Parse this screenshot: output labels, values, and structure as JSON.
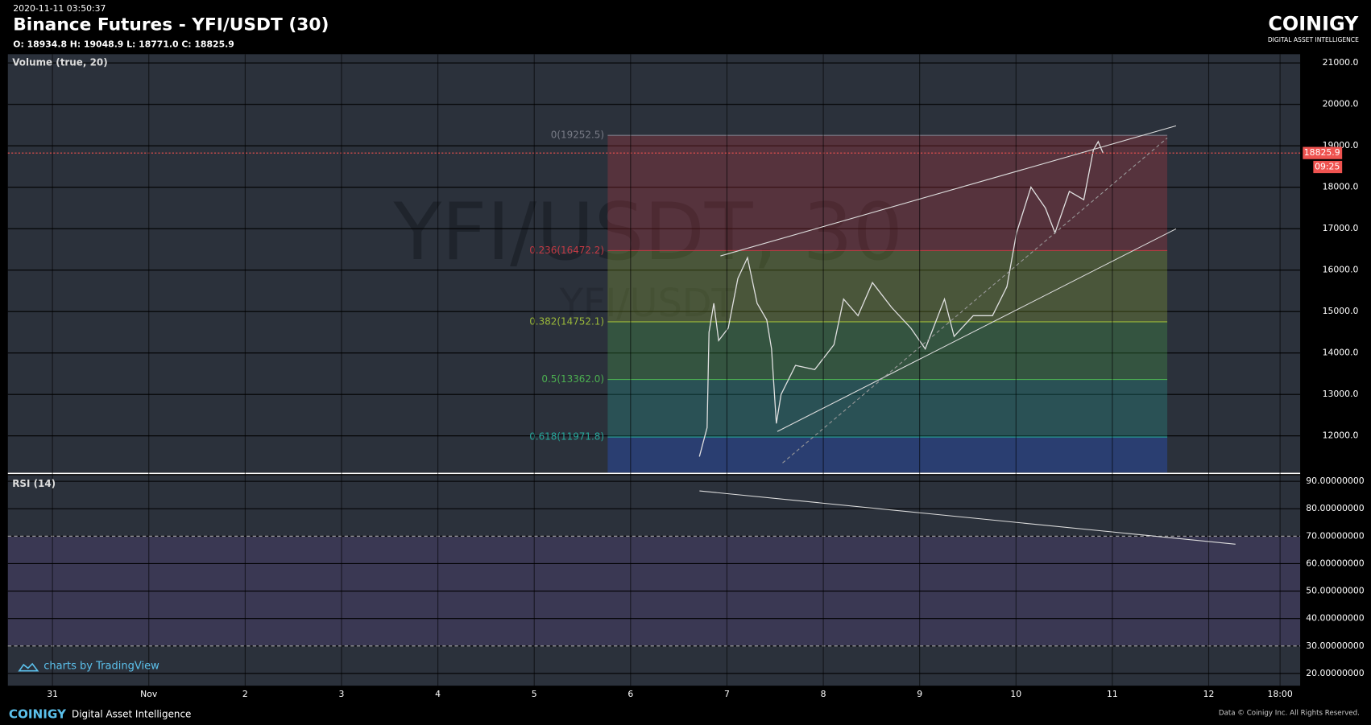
{
  "header": {
    "timestamp": "2020-11-11 03:50:37",
    "title": "Binance Futures - YFI/USDT (30)",
    "ohlc": "O: 18934.8 H: 19048.9 L: 18771.0 C: 18825.9"
  },
  "logo": {
    "name": "COINIGY",
    "tagline": "DIGITAL ASSET INTELLIGENCE"
  },
  "chart": {
    "watermark": "YFI/USDT, 30",
    "watermark_small": "YFI/USDT",
    "volume_label": "Volume (true, 20)",
    "rsi_label": "RSI (14)",
    "attribution": "charts by TradingView",
    "price_ticks": [
      {
        "value": 21000,
        "label": "21000.0"
      },
      {
        "value": 20000,
        "label": "20000.0"
      },
      {
        "value": 19000,
        "label": "19000.0"
      },
      {
        "value": 18000,
        "label": "18000.0"
      },
      {
        "value": 17000,
        "label": "17000.0"
      },
      {
        "value": 16000,
        "label": "16000.0"
      },
      {
        "value": 15000,
        "label": "15000.0"
      },
      {
        "value": 14000,
        "label": "14000.0"
      },
      {
        "value": 13000,
        "label": "13000.0"
      },
      {
        "value": 12000,
        "label": "12000.0"
      }
    ],
    "fib_levels": [
      {
        "value": 19252.5,
        "label": "0(19252.5)",
        "color": "#787b86"
      },
      {
        "value": 16472.2,
        "label": "0.236(16472.2)",
        "color": "#c43a44"
      },
      {
        "value": 14752.1,
        "label": "0.382(14752.1)",
        "color": "#9ab83a"
      },
      {
        "value": 13362.0,
        "label": "0.5(13362.0)",
        "color": "#4caf50"
      },
      {
        "value": 11971.8,
        "label": "0.618(11971.8)",
        "color": "#26a69a"
      }
    ],
    "last_price": {
      "value": 18825.9,
      "label": "18825.9"
    },
    "countdown": "09:25",
    "rsi_ticks": [
      {
        "value": 90,
        "label": "90.00000000"
      },
      {
        "value": 80,
        "label": "80.00000000"
      },
      {
        "value": 70,
        "label": "70.00000000"
      },
      {
        "value": 60,
        "label": "60.00000000"
      },
      {
        "value": 50,
        "label": "50.00000000"
      },
      {
        "value": 40,
        "label": "40.00000000"
      },
      {
        "value": 30,
        "label": "30.00000000"
      },
      {
        "value": 20,
        "label": "20.00000000"
      }
    ],
    "rsi_band": [
      30,
      70
    ],
    "x_labels": [
      "31",
      "Nov",
      "2",
      "3",
      "4",
      "5",
      "6",
      "7",
      "8",
      "9",
      "10",
      "11",
      "12",
      "18:00"
    ],
    "price_trace": {
      "x": [
        6.7,
        6.78,
        6.8,
        6.85,
        6.9,
        7.0,
        7.1,
        7.2,
        7.3,
        7.4,
        7.45,
        7.5,
        7.55,
        7.7,
        7.9,
        8.1,
        8.2,
        8.35,
        8.5,
        8.7,
        8.9,
        9.05,
        9.25,
        9.35,
        9.55,
        9.75,
        9.9,
        10.0,
        10.15,
        10.3,
        10.4,
        10.55,
        10.7,
        10.8,
        10.85,
        10.9
      ],
      "values": [
        11500,
        12200,
        14500,
        15200,
        14300,
        14600,
        15800,
        16300,
        15200,
        14800,
        14100,
        12300,
        13000,
        13700,
        13600,
        14200,
        15300,
        14900,
        15700,
        15100,
        14600,
        14100,
        15300,
        14400,
        14900,
        14900,
        15600,
        16900,
        18000,
        17500,
        16900,
        17900,
        17700,
        18900,
        19100,
        18825.9
      ]
    }
  },
  "footer": {
    "brand": "COINIGY",
    "tagline": "Digital Asset Intelligence",
    "copyright": "Data © Coinigy Inc. All Rights Reserved."
  }
}
